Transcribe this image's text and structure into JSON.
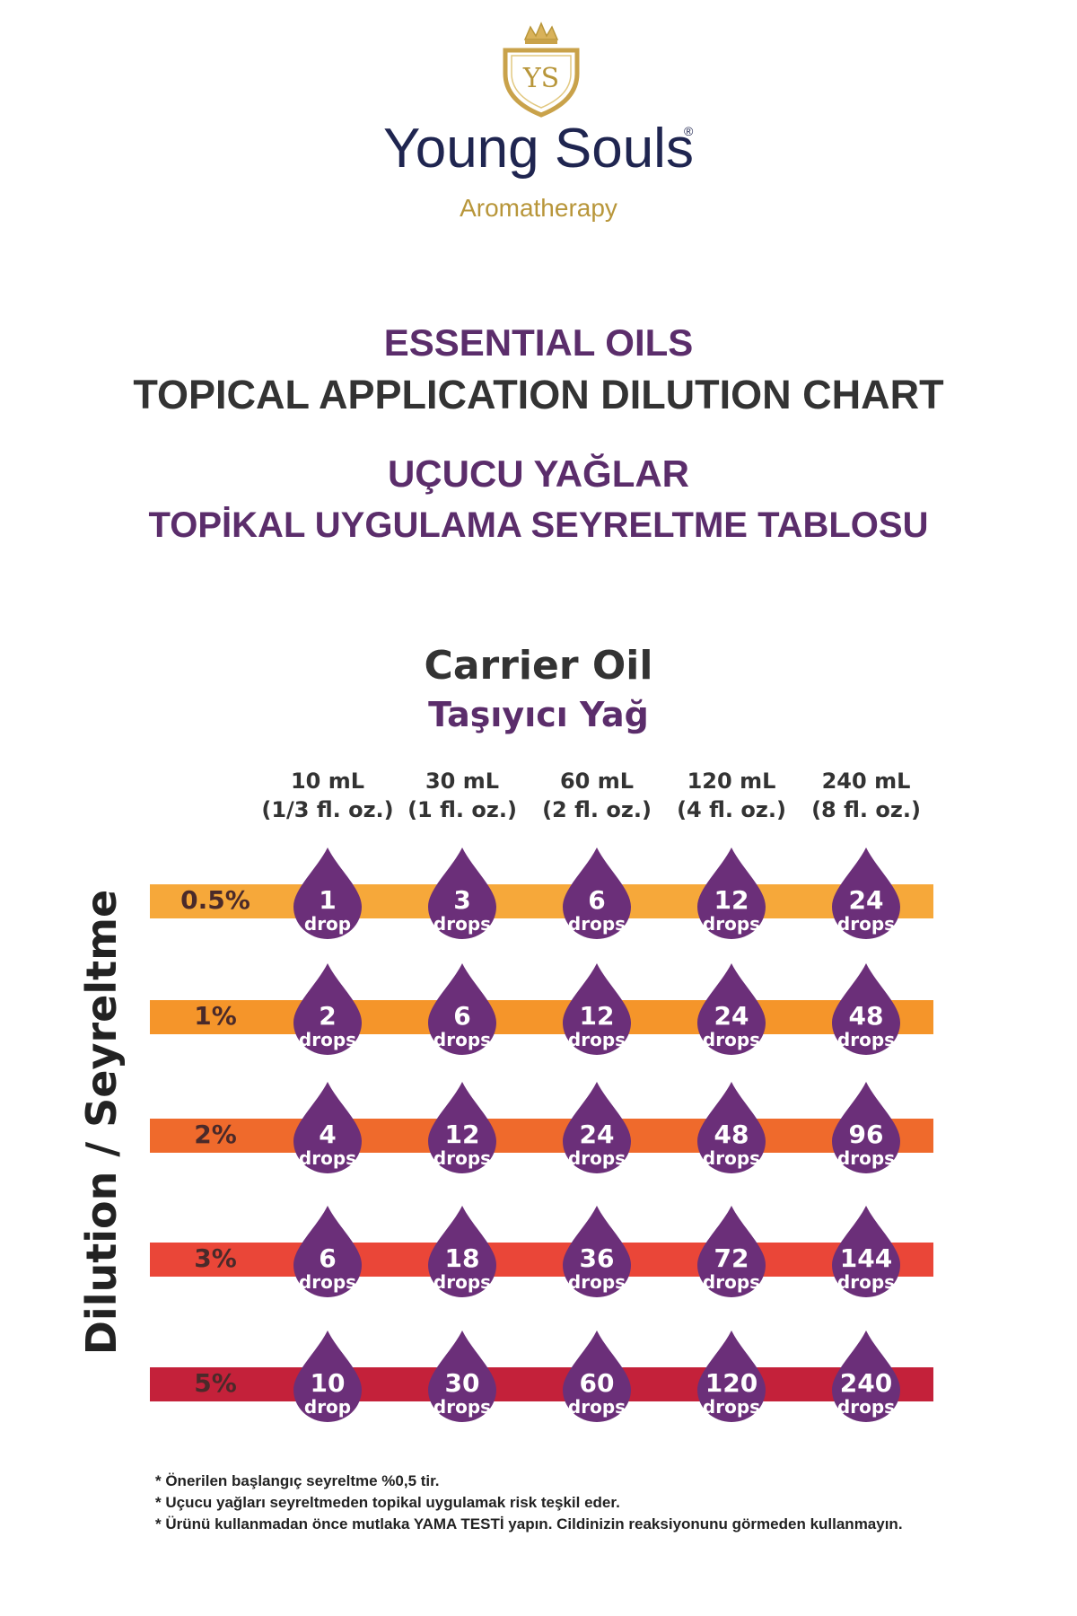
{
  "brand": {
    "monogram": "YS",
    "name": "Young Souls",
    "registered": "®",
    "subtitle": "Aromatherapy",
    "colors": {
      "navy": "#1f2550",
      "gold": "#b8963a"
    }
  },
  "headings": {
    "en_line1": "ESSENTIAL OILS",
    "en_line2": "TOPICAL APPLICATION DILUTION CHART",
    "tr_line1": "UÇUCU YAĞLAR",
    "tr_line2": "TOPİKAL UYGULAMA SEYRELTME TABLOSU"
  },
  "carrier": {
    "en": "Carrier Oil",
    "tr": "Taşıyıcı Yağ"
  },
  "colors": {
    "purple": "#5b2d6b",
    "drop": "#6b2f79",
    "band_0_5": "#f6a83a",
    "band_1": "#f5952a",
    "band_2": "#ef6a2c",
    "band_3": "#ea4638",
    "band_5": "#c4213a"
  },
  "chart_data": {
    "type": "table",
    "axis_label": "Dilution  / Seyreltme",
    "columns": [
      {
        "volume": "10 mL",
        "oz": "(1/3 fl. oz.)"
      },
      {
        "volume": "30 mL",
        "oz": "(1 fl. oz.)"
      },
      {
        "volume": "60 mL",
        "oz": "(2 fl. oz.)"
      },
      {
        "volume": "120 mL",
        "oz": "(4 fl. oz.)"
      },
      {
        "volume": "240 mL",
        "oz": "(8 fl. oz.)"
      }
    ],
    "rows": [
      {
        "dilution": "0.5%",
        "cells": [
          {
            "value": "1",
            "unit": "drop"
          },
          {
            "value": "3",
            "unit": "drops"
          },
          {
            "value": "6",
            "unit": "drops"
          },
          {
            "value": "12",
            "unit": "drops"
          },
          {
            "value": "24",
            "unit": "drops"
          }
        ]
      },
      {
        "dilution": "1%",
        "cells": [
          {
            "value": "2",
            "unit": "drops"
          },
          {
            "value": "6",
            "unit": "drops"
          },
          {
            "value": "12",
            "unit": "drops"
          },
          {
            "value": "24",
            "unit": "drops"
          },
          {
            "value": "48",
            "unit": "drops"
          }
        ]
      },
      {
        "dilution": "2%",
        "cells": [
          {
            "value": "4",
            "unit": "drops"
          },
          {
            "value": "12",
            "unit": "drops"
          },
          {
            "value": "24",
            "unit": "drops"
          },
          {
            "value": "48",
            "unit": "drops"
          },
          {
            "value": "96",
            "unit": "drops"
          }
        ]
      },
      {
        "dilution": "3%",
        "cells": [
          {
            "value": "6",
            "unit": "drops"
          },
          {
            "value": "18",
            "unit": "drops"
          },
          {
            "value": "36",
            "unit": "drops"
          },
          {
            "value": "72",
            "unit": "drops"
          },
          {
            "value": "144",
            "unit": "drops"
          }
        ]
      },
      {
        "dilution": "5%",
        "cells": [
          {
            "value": "10",
            "unit": "drop"
          },
          {
            "value": "30",
            "unit": "drops"
          },
          {
            "value": "60",
            "unit": "drops"
          },
          {
            "value": "120",
            "unit": "drops"
          },
          {
            "value": "240",
            "unit": "drops"
          }
        ]
      }
    ]
  },
  "notes": [
    "* Önerilen başlangıç seyreltme %0,5 tir.",
    "* Uçucu yağları seyreltmeden topikal uygulamak risk teşkil eder.",
    "* Ürünü kullanmadan önce mutlaka YAMA TESTİ yapın. Cildinizin reaksiyonunu görmeden kullanmayın."
  ]
}
